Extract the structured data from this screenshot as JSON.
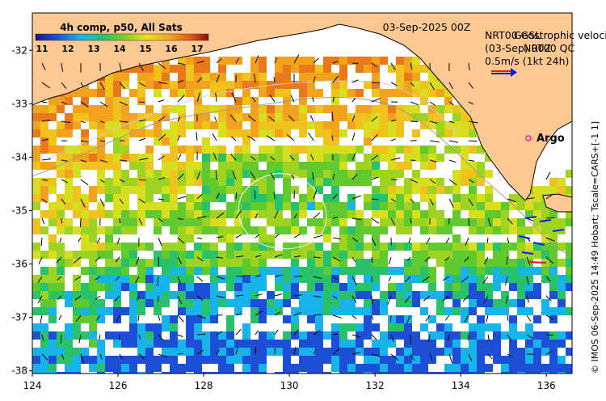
{
  "map": {
    "date_label": "03-Sep-2025 00Z",
    "side_label": "© IMOS 06-Sep-2025 14:49 Hobart; Tscale=CARS+[-1 1]",
    "x_ticks": [
      "124",
      "126",
      "128",
      "130",
      "132",
      "134",
      "136"
    ],
    "y_ticks": [
      "-32",
      "-33",
      "-34",
      "-35",
      "-36",
      "-37",
      "-38"
    ],
    "x_range": [
      124,
      136.6
    ],
    "y_range": [
      -38.05,
      -31.3
    ],
    "colors": {
      "land": "#fdc892",
      "ocean_nodata": "#ffffff",
      "vector_arrow": "#000000"
    }
  },
  "colorbar": {
    "title": "4h comp, p50, All Sats",
    "ticks": [
      "11",
      "12",
      "13",
      "14",
      "15",
      "16",
      "17"
    ],
    "range": [
      11,
      17
    ]
  },
  "legend": {
    "line1": "NRT00 GSL",
    "line2": "(03-Sep) 00Z",
    "line3": "Geostrophic velocity",
    "line4": "NRT00 QC",
    "scale_label": "0.5m/s (1kt 24h)",
    "argo_label": "Argo",
    "argo_color": "#e0209a"
  }
}
